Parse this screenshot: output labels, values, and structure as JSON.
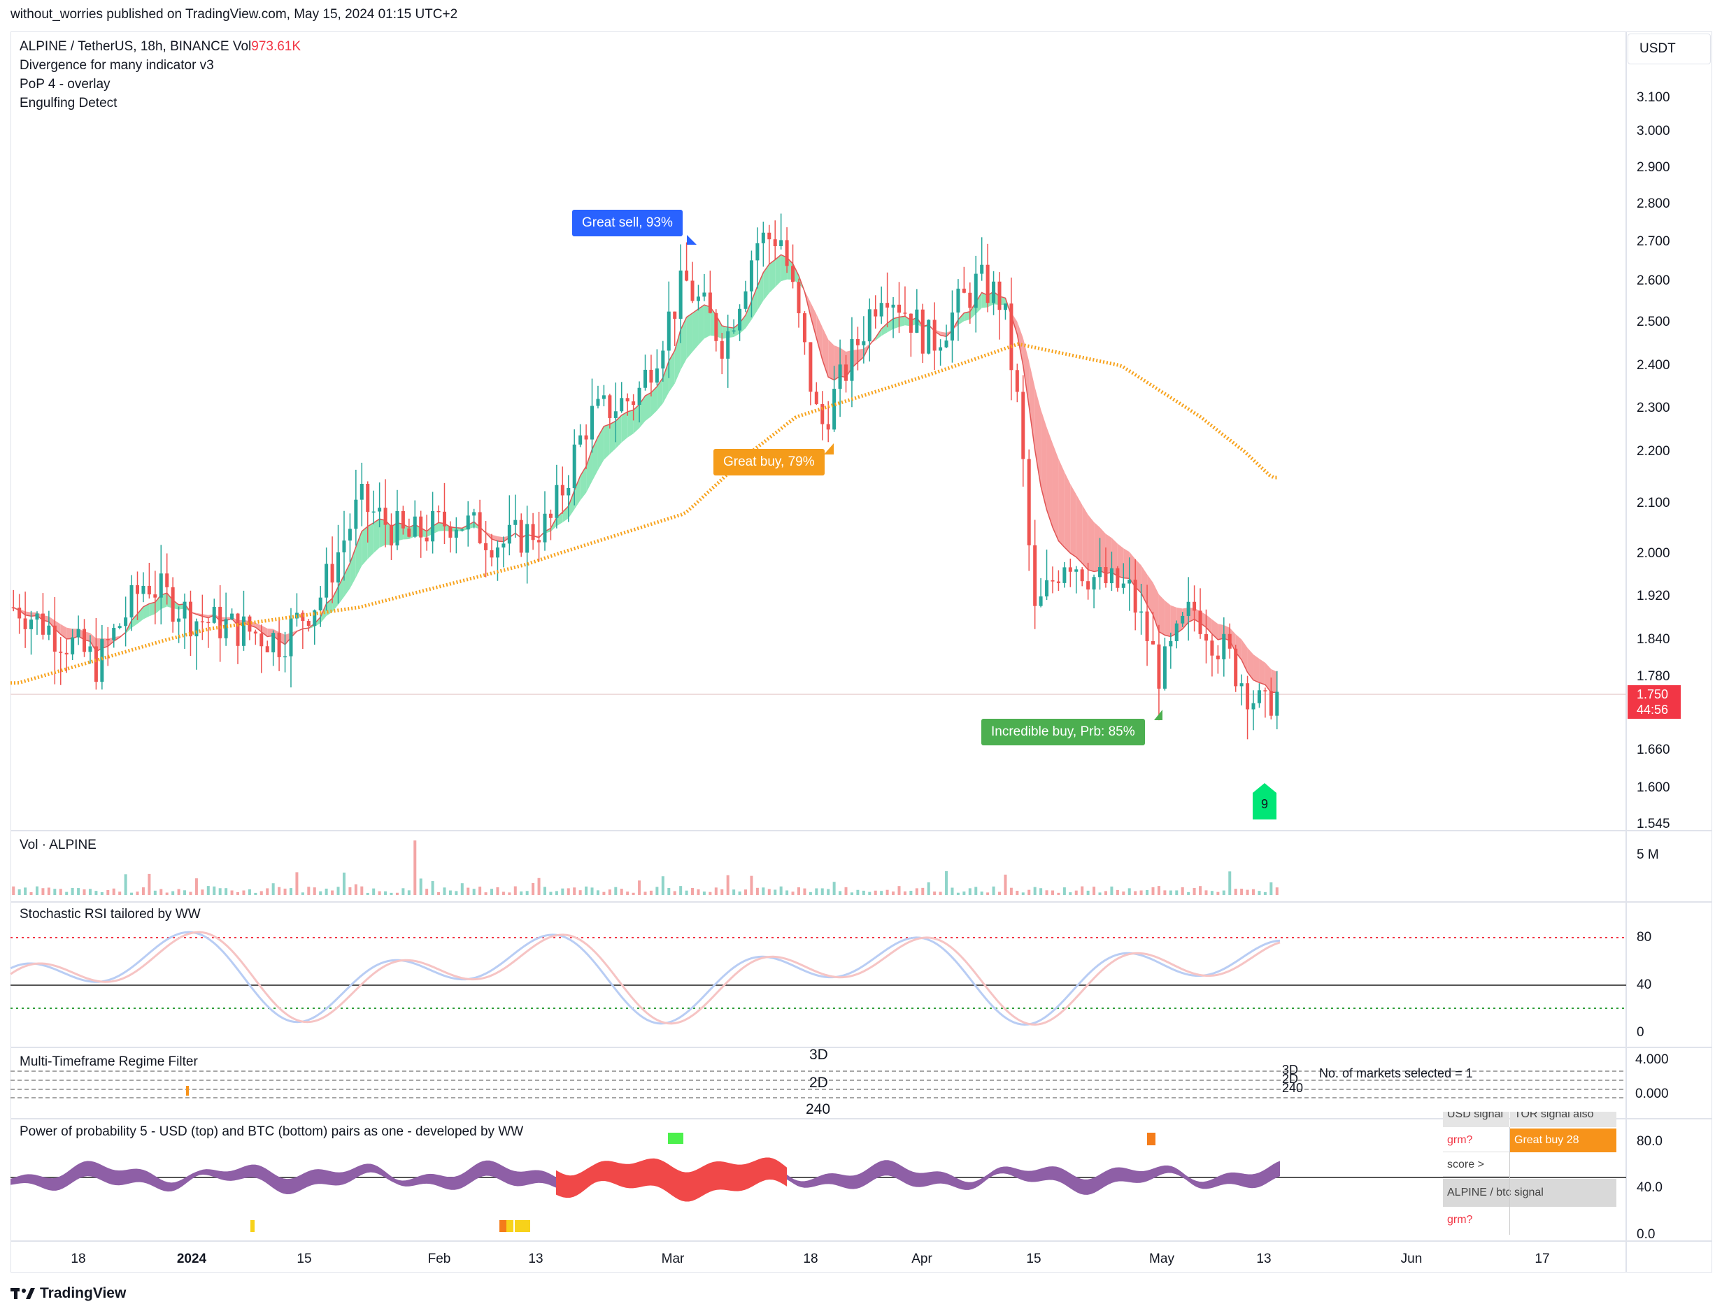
{
  "header": {
    "published_text": "without_worries published on TradingView.com, May 15, 2024 01:15 UTC+2"
  },
  "legend": {
    "symbol_line": "ALPINE / TetherUS, 18h, BINANCE  Vol",
    "volume_value": "973.61K",
    "indicators": [
      "Divergence for many indicator v3",
      "PoP 4 - overlay",
      "Engulfing Detect"
    ]
  },
  "currency_button": "USDT",
  "price_axis": {
    "ticks": [
      "3.100",
      "3.000",
      "2.900",
      "2.800",
      "2.700",
      "2.600",
      "2.500",
      "2.400",
      "2.300",
      "2.200",
      "2.100",
      "2.000",
      "1.920",
      "1.840",
      "1.780",
      "1.660",
      "1.600",
      "1.545"
    ]
  },
  "last_price": {
    "price": "1.750",
    "countdown": "44:56"
  },
  "annotations": {
    "great_sell": "Great sell, 93%",
    "great_buy": "Great buy,  79%",
    "incredible_buy": "Incredible buy, Prb: 85%",
    "count_badge": "9"
  },
  "panes": {
    "volume": {
      "title": "Vol · ALPINE",
      "axis_label": "5 M"
    },
    "stoch": {
      "title": "Stochastic RSI tailored by WW",
      "ticks": [
        "80",
        "40",
        "0"
      ]
    },
    "mtf": {
      "title": "Multi-Timeframe Regime Filter",
      "labels_center": [
        "3D",
        "2D",
        "240"
      ],
      "labels_right": [
        "3D",
        "2D",
        "240"
      ],
      "markets_text": "No. of markets selected = 1",
      "ticks": [
        "4.000",
        "0.000"
      ]
    },
    "pop": {
      "title": "Power of probability 5 - USD (top) and BTC (bottom) pairs as one - developed by WW",
      "ticks": [
        "80.0",
        "40.0",
        "0.0"
      ],
      "table": {
        "usd_signal": "USD signal",
        "tf_signal": "TOR signal also",
        "grm1": "grm?",
        "signal_value": "Great buy 28",
        "score": "score >",
        "btc_signal": "ALPINE / btc signal",
        "grm2": "grm?"
      }
    }
  },
  "time_axis": {
    "labels": [
      "18",
      "2024",
      "15",
      "Feb",
      "13",
      "Mar",
      "18",
      "Apr",
      "15",
      "May",
      "13",
      "Jun",
      "17"
    ]
  },
  "footer": {
    "brand": "TradingView"
  },
  "colors": {
    "up": "#26a69a",
    "down": "#ef5350",
    "ma": "#f7a21b",
    "green_cloud": "#8ee6b8",
    "red_cloud": "#f7a3a3",
    "sell": "#2962ff",
    "buy": "#f59c1a",
    "incredible": "#4caf50"
  },
  "chart_data": {
    "type": "candlestick",
    "x_range": [
      "2023-12-07",
      "2024-05-15"
    ],
    "ylim": [
      1.545,
      3.1
    ],
    "price_path": [
      {
        "date": "2023-12-08",
        "close": 1.9
      },
      {
        "date": "2023-12-14",
        "close": 1.84
      },
      {
        "date": "2023-12-18",
        "close": 1.8
      },
      {
        "date": "2023-12-24",
        "close": 1.95
      },
      {
        "date": "2023-12-30",
        "close": 1.88
      },
      {
        "date": "2024-01-05",
        "close": 1.86
      },
      {
        "date": "2024-01-10",
        "close": 1.84
      },
      {
        "date": "2024-01-15",
        "close": 1.92
      },
      {
        "date": "2024-01-20",
        "close": 2.1
      },
      {
        "date": "2024-01-26",
        "close": 2.03
      },
      {
        "date": "2024-02-01",
        "close": 2.07
      },
      {
        "date": "2024-02-07",
        "close": 2.02
      },
      {
        "date": "2024-02-13",
        "close": 2.06
      },
      {
        "date": "2024-02-18",
        "close": 2.28
      },
      {
        "date": "2024-02-24",
        "close": 2.33
      },
      {
        "date": "2024-03-01",
        "close": 2.6
      },
      {
        "date": "2024-03-06",
        "close": 2.45
      },
      {
        "date": "2024-03-10",
        "close": 2.7
      },
      {
        "date": "2024-03-13",
        "close": 2.72
      },
      {
        "date": "2024-03-18",
        "close": 2.25
      },
      {
        "date": "2024-03-22",
        "close": 2.42
      },
      {
        "date": "2024-03-26",
        "close": 2.6
      },
      {
        "date": "2024-04-01",
        "close": 2.45
      },
      {
        "date": "2024-04-07",
        "close": 2.6
      },
      {
        "date": "2024-04-10",
        "close": 2.55
      },
      {
        "date": "2024-04-12",
        "close": 2.3
      },
      {
        "date": "2024-04-14",
        "close": 1.88
      },
      {
        "date": "2024-04-18",
        "close": 2.0
      },
      {
        "date": "2024-04-22",
        "close": 1.95
      },
      {
        "date": "2024-04-26",
        "close": 1.93
      },
      {
        "date": "2024-04-30",
        "close": 1.78
      },
      {
        "date": "2024-05-04",
        "close": 1.9
      },
      {
        "date": "2024-05-09",
        "close": 1.8
      },
      {
        "date": "2024-05-13",
        "close": 1.72
      },
      {
        "date": "2024-05-14",
        "close": 1.75
      }
    ],
    "ma_path": [
      {
        "date": "2023-12-08",
        "value": 1.77
      },
      {
        "date": "2024-01-01",
        "value": 1.86
      },
      {
        "date": "2024-01-20",
        "value": 1.9
      },
      {
        "date": "2024-02-10",
        "value": 1.98
      },
      {
        "date": "2024-03-01",
        "value": 2.08
      },
      {
        "date": "2024-03-15",
        "value": 2.28
      },
      {
        "date": "2024-04-01",
        "value": 2.38
      },
      {
        "date": "2024-04-12",
        "value": 2.45
      },
      {
        "date": "2024-04-25",
        "value": 2.4
      },
      {
        "date": "2024-05-05",
        "value": 2.28
      },
      {
        "date": "2024-05-14",
        "value": 2.15
      }
    ]
  }
}
